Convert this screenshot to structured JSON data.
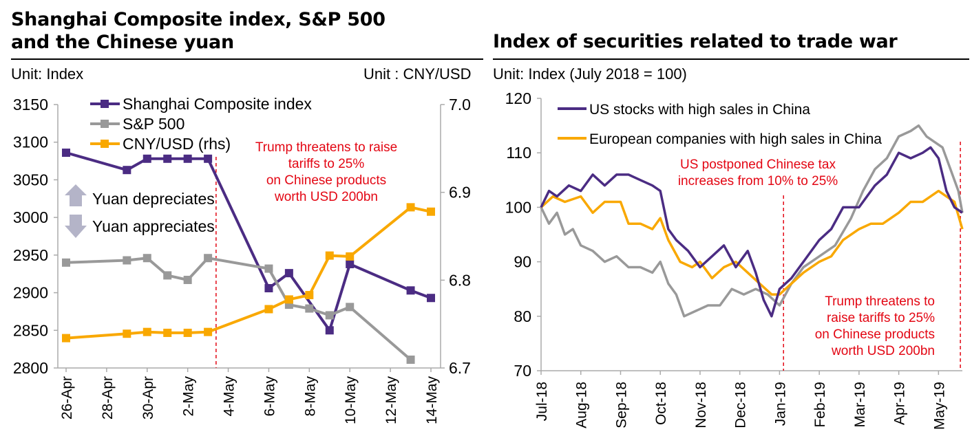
{
  "left": {
    "title": "Shanghai Composite index, S&P 500\nand the Chinese yuan",
    "unit_left": "Unit: Index",
    "unit_right": "Unit : CNY/USD",
    "legend": [
      "Shanghai Composite index",
      "S&P 500",
      "CNY/USD (rhs)"
    ],
    "arrow_up_label": "Yuan depreciates",
    "arrow_down_label": "Yuan appreciates",
    "annotation": [
      "Trump threatens to raise",
      "tariffs to 25%",
      "on Chinese products",
      "worth USD 200bn"
    ],
    "colors": {
      "shanghai": "#4b2c83",
      "sp500": "#999999",
      "cny": "#f9a800",
      "annotation": "#e30613",
      "arrow": "#b4b4c8"
    }
  },
  "right": {
    "title": "Index of securities related to trade war",
    "unit": "Unit: Index (July 2018 = 100)",
    "legend": [
      "US stocks with high sales in China",
      "European companies with high sales in China"
    ],
    "annotation_top": [
      "US postponed Chinese tax",
      "increases from 10% to 25%"
    ],
    "annotation_bottom": [
      "Trump threatens to",
      "raise tariffs to 25%",
      "on Chinese products",
      "worth USD 200bn"
    ],
    "colors": {
      "us": "#4b2c83",
      "eu": "#f9a800",
      "gray": "#999999",
      "annotation": "#e30613"
    }
  },
  "chart_data": [
    {
      "type": "line",
      "title": "Shanghai Composite index, S&P 500 and the Chinese yuan",
      "x_ticks": [
        "26-Apr",
        "28-Apr",
        "30-Apr",
        "2-May",
        "4-May",
        "6-May",
        "8-May",
        "10-May",
        "12-May",
        "14-May"
      ],
      "xlim": [
        26,
        44
      ],
      "ylim": [
        2800,
        3150
      ],
      "y_ticks": [
        2800,
        2850,
        2900,
        2950,
        3000,
        3050,
        3100,
        3150
      ],
      "y2lim": [
        6.7,
        7.0
      ],
      "y2_ticks": [
        "6.7",
        "6.8",
        "6.9",
        "7.0"
      ],
      "series": [
        {
          "name": "Shanghai Composite index",
          "axis": "left",
          "x": [
            26,
            29,
            30,
            31,
            32,
            33,
            36,
            37,
            39,
            40,
            43,
            44
          ],
          "values": [
            3086,
            3063,
            3078,
            3078,
            3078,
            3078,
            2906,
            2926,
            2850,
            2938,
            2903,
            2893
          ]
        },
        {
          "name": "S&P 500",
          "axis": "left",
          "x": [
            26,
            29,
            30,
            31,
            32,
            33,
            36,
            37,
            38,
            39,
            40,
            43
          ],
          "values": [
            2940,
            2943,
            2946,
            2923,
            2917,
            2946,
            2932,
            2884,
            2879,
            2870,
            2881,
            2811
          ]
        },
        {
          "name": "CNY/USD (rhs)",
          "axis": "right",
          "x": [
            26,
            29,
            30,
            31,
            32,
            33,
            36,
            37,
            38,
            39,
            40,
            43,
            44
          ],
          "values": [
            6.734,
            6.739,
            6.741,
            6.74,
            6.74,
            6.741,
            6.767,
            6.778,
            6.783,
            6.828,
            6.827,
            6.883,
            6.878
          ]
        }
      ],
      "annotation_x": 33.4
    },
    {
      "type": "line",
      "title": "Index of securities related to trade war",
      "x_ticks": [
        "Jul-18",
        "Aug-18",
        "Sep-18",
        "Oct-18",
        "Nov-18",
        "Dec-18",
        "Jan-19",
        "Feb-19",
        "Mar-19",
        "Apr-19",
        "May-19"
      ],
      "ylim": [
        70,
        120
      ],
      "y_ticks": [
        70,
        80,
        90,
        100,
        110,
        120
      ],
      "series": [
        {
          "name": "US stocks with high sales in China",
          "x": [
            0,
            0.2,
            0.4,
            0.7,
            1.0,
            1.3,
            1.6,
            1.9,
            2.2,
            2.5,
            2.8,
            3.0,
            3.2,
            3.4,
            3.7,
            4.0,
            4.3,
            4.6,
            4.9,
            5.2,
            5.4,
            5.6,
            5.8,
            6.0,
            6.3,
            6.6,
            7.0,
            7.3,
            7.6,
            8.0,
            8.4,
            8.7,
            9.0,
            9.3,
            9.6,
            9.8,
            10.0,
            10.2,
            10.4,
            10.6
          ],
          "values": [
            100,
            103,
            102,
            104,
            103,
            106,
            104,
            106,
            106,
            105,
            104,
            103,
            96,
            94,
            92,
            89,
            91,
            93,
            89,
            92,
            88,
            83,
            80,
            85,
            87,
            90,
            94,
            96,
            100,
            100,
            104,
            106,
            110,
            109,
            110,
            111,
            109,
            103,
            100,
            99
          ]
        },
        {
          "name": "European companies with high sales in China",
          "x": [
            0,
            0.3,
            0.6,
            1.0,
            1.3,
            1.6,
            2.0,
            2.2,
            2.5,
            2.8,
            3.0,
            3.2,
            3.5,
            3.8,
            4.0,
            4.3,
            4.6,
            4.9,
            5.2,
            5.5,
            5.8,
            6.0,
            6.3,
            6.6,
            7.0,
            7.3,
            7.6,
            8.0,
            8.3,
            8.6,
            9.0,
            9.3,
            9.6,
            9.8,
            10.0,
            10.2,
            10.4,
            10.6
          ],
          "values": [
            100,
            102,
            101,
            102,
            99,
            101,
            101,
            97,
            97,
            96,
            98,
            94,
            90,
            89,
            90,
            87,
            89,
            90,
            88,
            86,
            84,
            84,
            86,
            88,
            90,
            91,
            94,
            96,
            97,
            97,
            99,
            101,
            101,
            102,
            103,
            102,
            101,
            96
          ]
        },
        {
          "x": [
            0,
            0.2,
            0.4,
            0.6,
            0.8,
            1.0,
            1.3,
            1.6,
            1.9,
            2.2,
            2.5,
            2.8,
            3.0,
            3.2,
            3.4,
            3.6,
            3.9,
            4.2,
            4.5,
            4.8,
            5.1,
            5.4,
            5.7,
            6.0,
            6.3,
            6.6,
            7.0,
            7.4,
            7.8,
            8.1,
            8.4,
            8.7,
            9.0,
            9.3,
            9.5,
            9.7,
            9.9,
            10.1,
            10.3,
            10.5,
            10.6
          ],
          "values": [
            100,
            97,
            99,
            95,
            96,
            93,
            92,
            90,
            91,
            89,
            89,
            88,
            90,
            86,
            84,
            80,
            81,
            82,
            82,
            85,
            84,
            85,
            84,
            82,
            86,
            89,
            91,
            93,
            98,
            103,
            107,
            109,
            113,
            114,
            115,
            113,
            112,
            111,
            107,
            103,
            99
          ]
        }
      ],
      "annotation_x": [
        6.1,
        10.55
      ]
    }
  ]
}
